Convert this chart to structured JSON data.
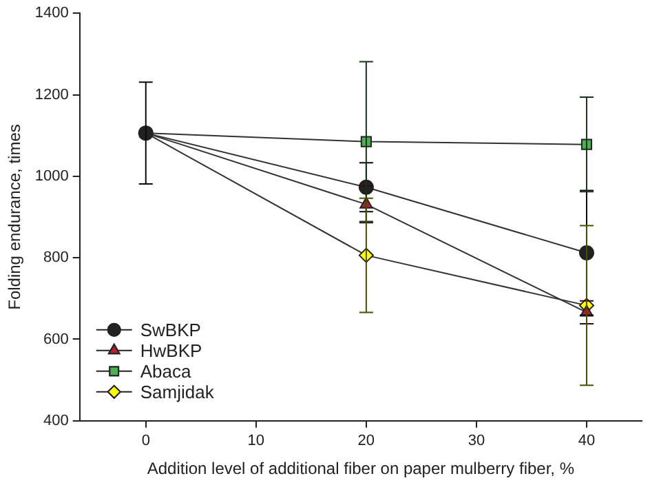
{
  "chart_data": {
    "type": "line",
    "xlabel": "Addition level of additional fiber on paper mulberry fiber, %",
    "ylabel": "Folding endurance, times",
    "x": [
      0,
      20,
      40
    ],
    "xlim": [
      -6,
      45
    ],
    "xticks": [
      0,
      10,
      20,
      30,
      40
    ],
    "ylim": [
      400,
      1400
    ],
    "yticks": [
      400,
      600,
      800,
      1000,
      1200,
      1400
    ],
    "grid": false,
    "legend": "bottom left",
    "series": [
      {
        "name": "SwBKP",
        "color": "#222222",
        "marker": "circle",
        "values": [
          1106,
          973,
          812
        ],
        "errors": [
          125,
          60,
          153
        ]
      },
      {
        "name": "HwBKP",
        "color": "#b02030",
        "marker": "triangle",
        "values": [
          1106,
          931,
          666
        ],
        "errors": [
          null,
          45,
          28
        ]
      },
      {
        "name": "Abaca",
        "color": "#4caf50",
        "marker": "square",
        "values": [
          1106,
          1085,
          1078
        ],
        "errors": [
          null,
          196,
          116
        ]
      },
      {
        "name": "Samjidak",
        "color": "#ffff00",
        "marker": "diamond",
        "values": [
          1106,
          806,
          683
        ],
        "errors": [
          null,
          140,
          196
        ]
      }
    ]
  }
}
